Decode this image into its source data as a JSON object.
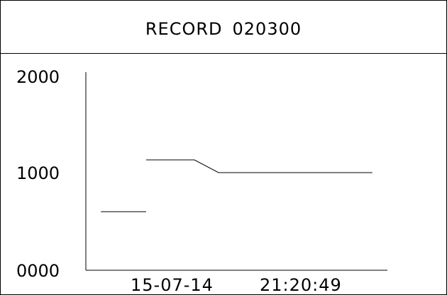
{
  "header": {
    "label": "RECORD",
    "record_id": "020300"
  },
  "chart_data": {
    "type": "line",
    "title": "RECORD 020300",
    "ylim": [
      0,
      2000
    ],
    "y_ticks": [
      "2000",
      "1000",
      "0000"
    ],
    "x_info": {
      "date": "15-07-14",
      "time": "21:20:49"
    },
    "series": [
      {
        "points": [
          {
            "x": 0.05,
            "y": 600
          },
          {
            "x": 0.2,
            "y": 600
          },
          {
            "x": null,
            "y": null
          },
          {
            "x": 0.2,
            "y": 1130
          },
          {
            "x": 0.36,
            "y": 1130
          },
          {
            "x": 0.44,
            "y": 1000
          },
          {
            "x": 0.95,
            "y": 1000
          }
        ]
      }
    ],
    "grid": false
  }
}
